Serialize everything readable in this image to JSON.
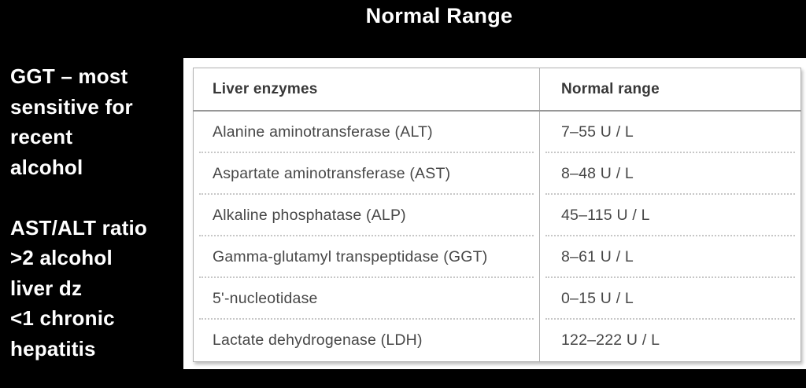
{
  "page": {
    "title": "Normal Range"
  },
  "notes": {
    "ggt_note": "GGT – most\nsensitive for\nrecent\nalcohol",
    "ast_alt_note": "AST/ALT ratio\n>2 alcohol\nliver dz\n<1 chronic\nhepatitis"
  },
  "table": {
    "headers": [
      "Liver enzymes",
      "Normal range"
    ],
    "rows": [
      [
        "Alanine aminotransferase (ALT)",
        "7–55 U / L"
      ],
      [
        "Aspartate aminotransferase (AST)",
        "8–48 U / L"
      ],
      [
        "Alkaline phosphatase (ALP)",
        "45–115 U / L"
      ],
      [
        "Gamma-glutamyl transpeptidase (GGT)",
        "8–61 U / L"
      ],
      [
        "5'-nucleotidase",
        "0–15 U / L"
      ],
      [
        "Lactate dehydrogenase (LDH)",
        "122–222 U / L"
      ]
    ]
  },
  "colors": {
    "background": "#000000",
    "note_text": "#ffffff",
    "table_background": "#ffffff",
    "table_text": "#474747",
    "table_border": "#b2b2b2",
    "row_separator": "#c7c7c7"
  }
}
